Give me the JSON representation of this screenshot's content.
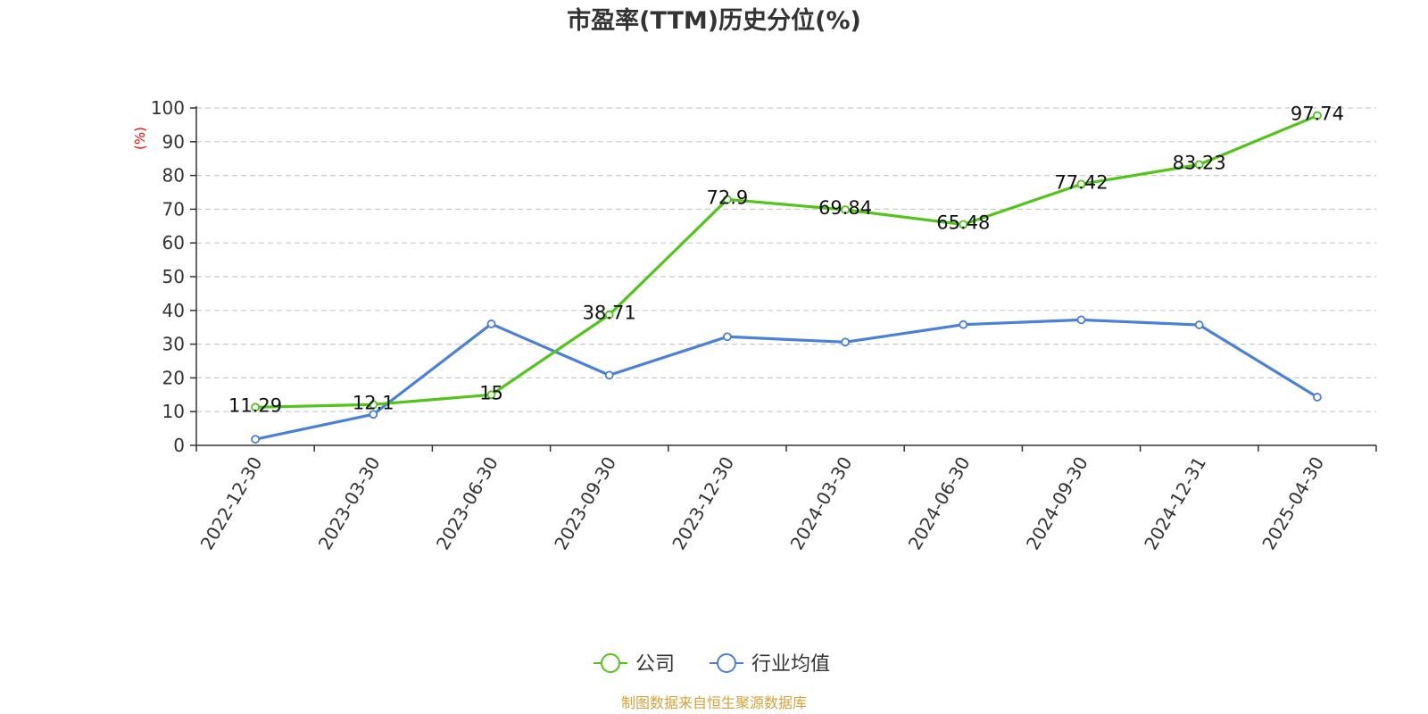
{
  "chart_data": {
    "type": "line",
    "title": "市盈率(TTM)历史分位(%)",
    "ylabel": "(%)",
    "xlabel": "",
    "ylim": [
      0,
      100
    ],
    "yticks": [
      0,
      10,
      20,
      30,
      40,
      50,
      60,
      70,
      80,
      90,
      100
    ],
    "grid": true,
    "legend_position": "bottom",
    "categories": [
      "2022-12-30",
      "2023-03-30",
      "2023-06-30",
      "2023-09-30",
      "2023-12-30",
      "2024-03-30",
      "2024-06-30",
      "2024-09-30",
      "2024-12-31",
      "2025-04-30"
    ],
    "series": [
      {
        "name": "公司",
        "color": "#52c41a",
        "values": [
          11.29,
          12.1,
          15,
          38.71,
          72.9,
          69.84,
          65.48,
          77.42,
          83.23,
          97.74
        ],
        "labels": [
          "11.29",
          "12.1",
          "15",
          "38.71",
          "72.9",
          "69.84",
          "65.48",
          "77.42",
          "83.23",
          "97.74"
        ]
      },
      {
        "name": "行业均值",
        "color": "#4a7fdc",
        "values": [
          1.8,
          9.2,
          36,
          20.8,
          32.2,
          30.6,
          35.8,
          37.2,
          35.7,
          14.3
        ]
      }
    ]
  },
  "footer": {
    "source": "制图数据来自恒生聚源数据库"
  }
}
